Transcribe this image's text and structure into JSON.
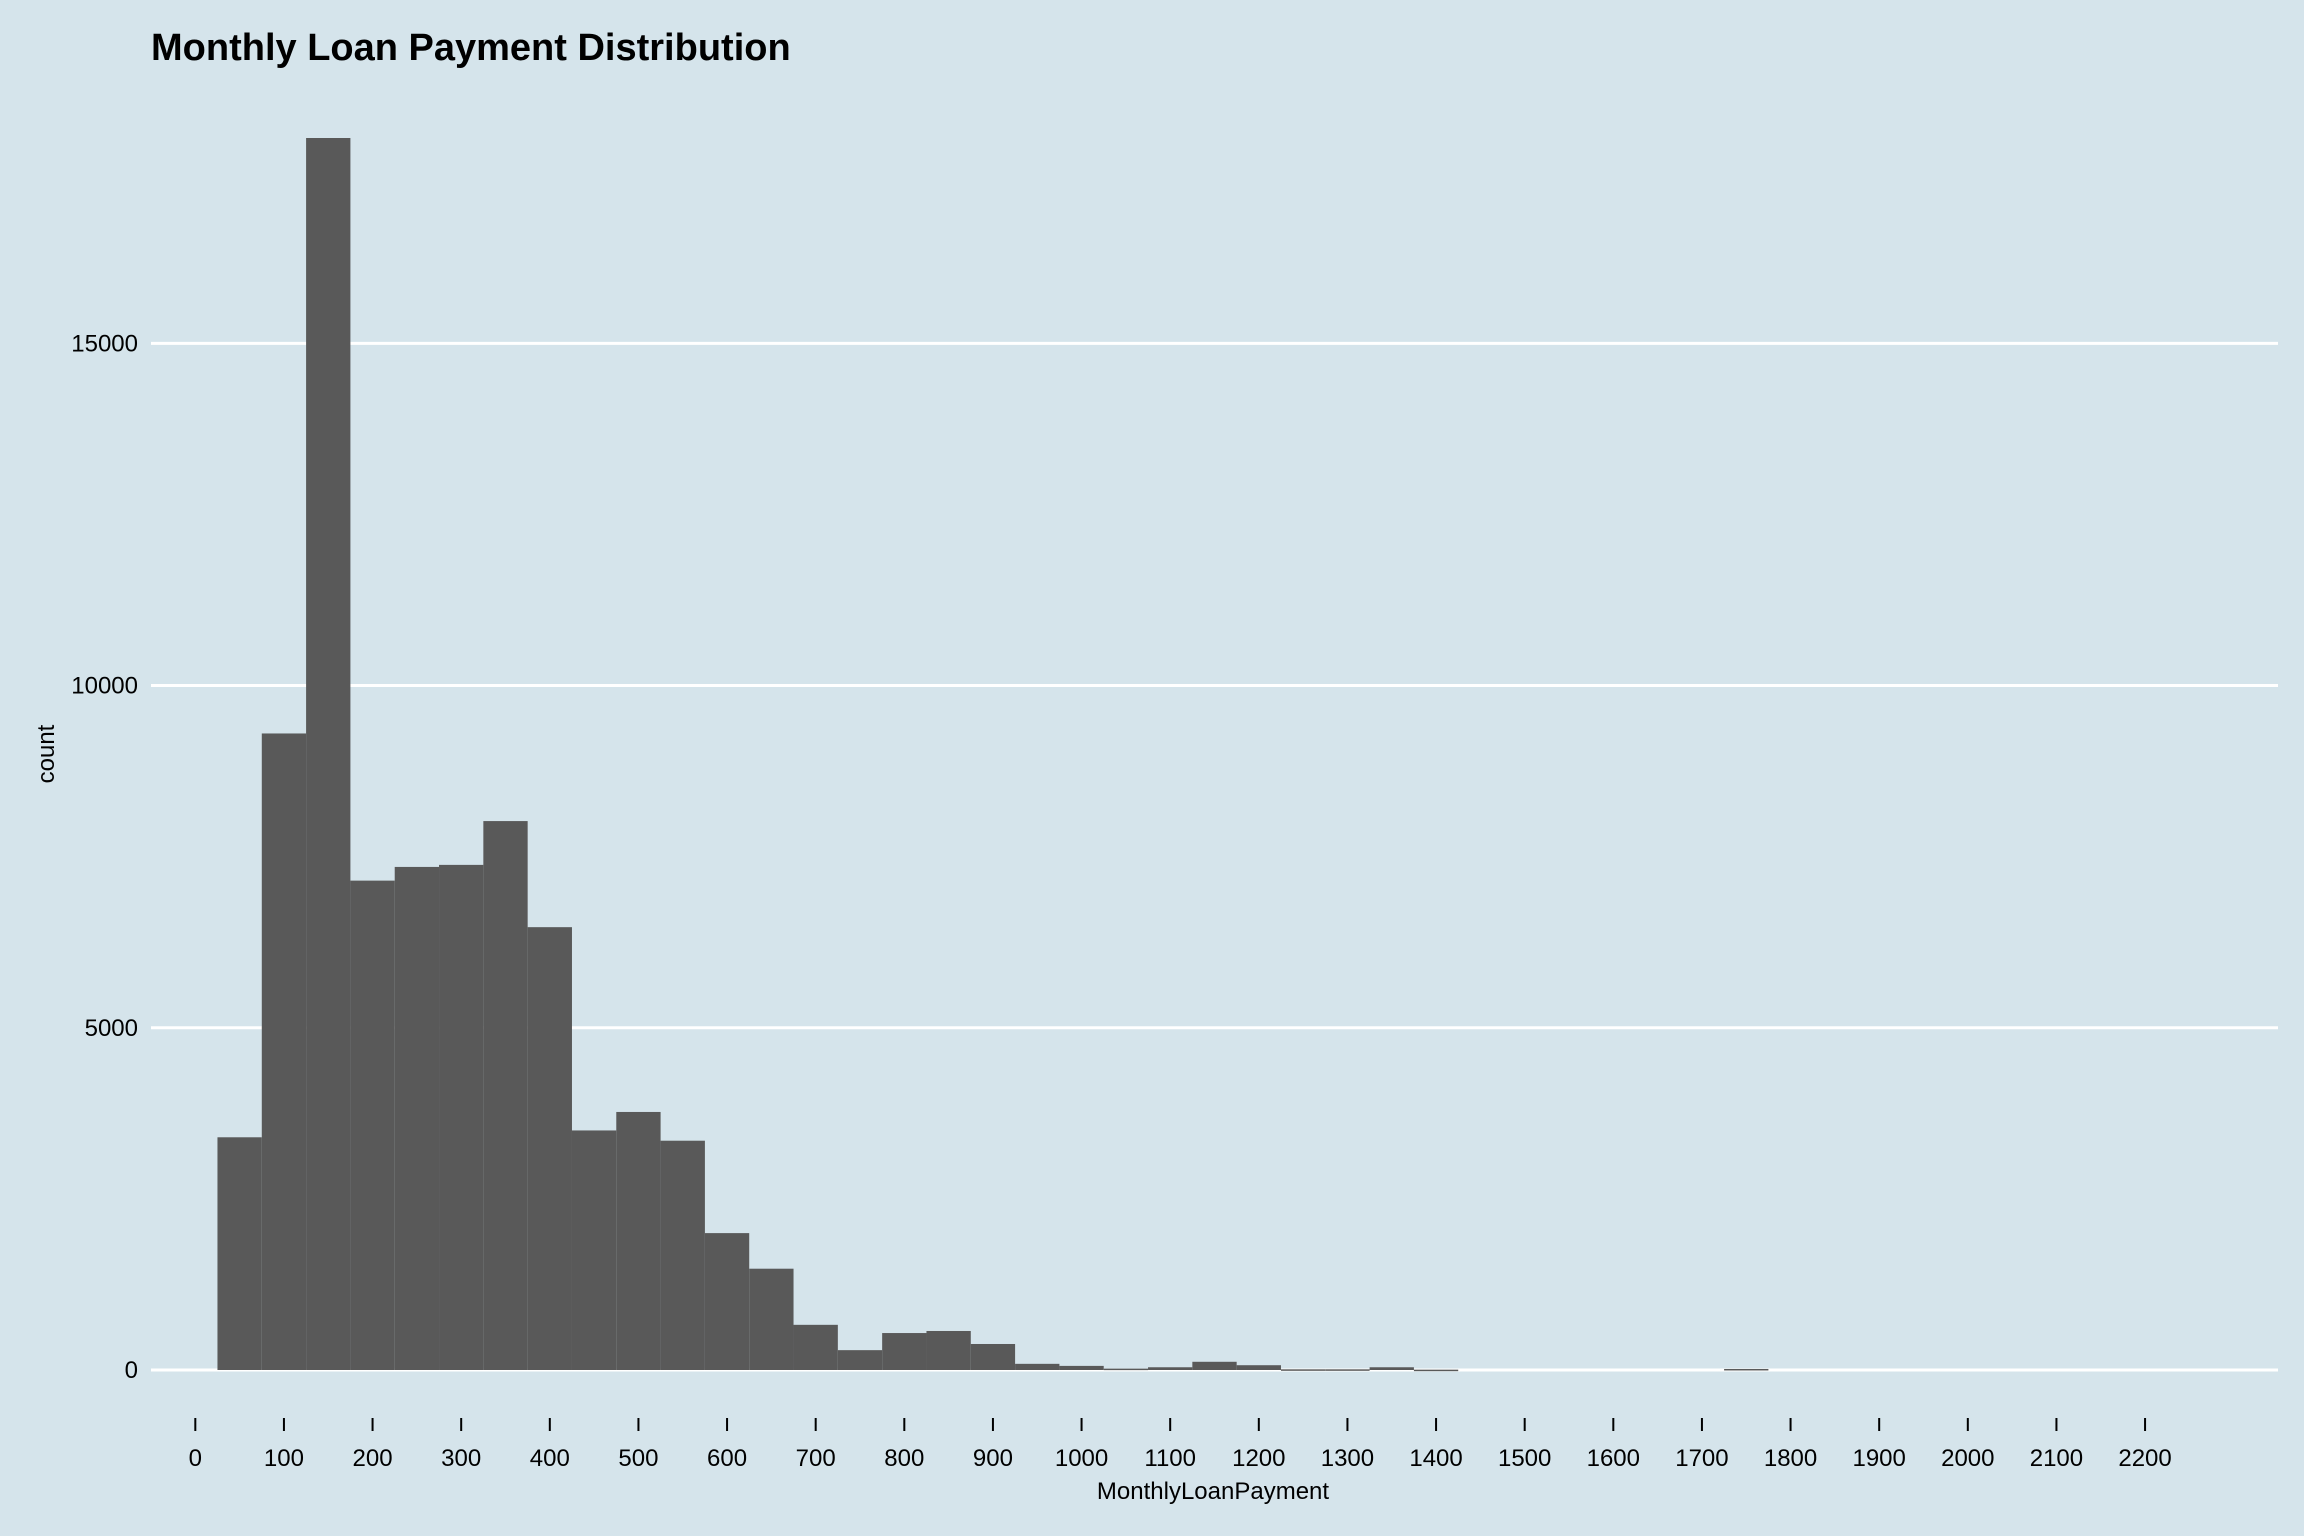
{
  "chart_data": {
    "type": "bar",
    "title": "Monthly Loan Payment Distribution",
    "xlabel": "MonthlyLoanPayment",
    "ylabel": "count",
    "bin_width": 50,
    "bin_starts": [
      25,
      75,
      125,
      175,
      225,
      275,
      325,
      375,
      425,
      475,
      525,
      575,
      625,
      675,
      725,
      775,
      825,
      875,
      925,
      975,
      1025,
      1075,
      1125,
      1175,
      1225,
      1275,
      1325,
      1375,
      1425,
      1475,
      1525,
      1575,
      1625,
      1675,
      1725,
      1775,
      1825,
      1875,
      1925,
      1975,
      2025,
      2075,
      2125,
      2175
    ],
    "values": [
      3400,
      9300,
      18000,
      7150,
      7350,
      7380,
      8020,
      6470,
      3500,
      3770,
      3350,
      2000,
      1480,
      660,
      290,
      540,
      570,
      380,
      90,
      60,
      20,
      40,
      120,
      70,
      10,
      10,
      40,
      5,
      0,
      0,
      0,
      0,
      0,
      0,
      15,
      0,
      0,
      0,
      0,
      0,
      0,
      0,
      0,
      0
    ],
    "xlim": [
      -50,
      2350
    ],
    "ylim": [
      0,
      18000
    ],
    "x_ticks": [
      0,
      100,
      200,
      300,
      400,
      500,
      600,
      700,
      800,
      900,
      1000,
      1100,
      1200,
      1300,
      1400,
      1500,
      1600,
      1700,
      1800,
      1900,
      2000,
      2100,
      2200
    ],
    "x_tick_labels": [
      "0",
      "100",
      "200",
      "300",
      "400",
      "500",
      "600",
      "700",
      "800",
      "900",
      "1000",
      "1100",
      "1200",
      "1300",
      "1400",
      "1500",
      "1600",
      "1700",
      "1800",
      "1900",
      "2000",
      "2100",
      "2200"
    ],
    "y_ticks": [
      0,
      5000,
      10000,
      15000
    ],
    "y_tick_labels": [
      "0",
      "5000",
      "10000",
      "15000"
    ],
    "grid": "horizontal-major",
    "colors": {
      "background": "#d5e4eb",
      "bar": "#595959",
      "grid": "#ffffff",
      "tick": "#000000",
      "text": "#000000"
    }
  }
}
